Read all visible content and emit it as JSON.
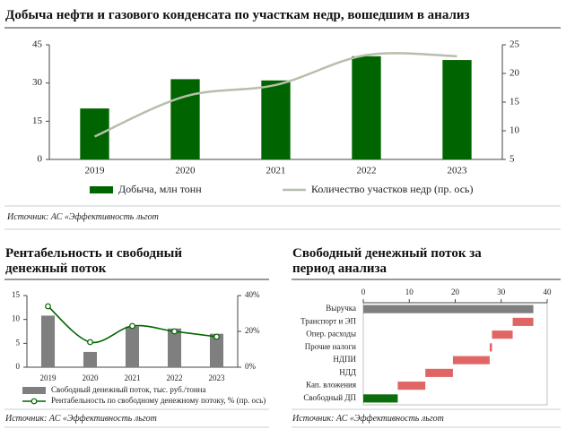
{
  "chart_data": [
    {
      "type": "combo",
      "title": "Добыча нефти и газового конденсата по участкам недр, вошедшим в анализ",
      "categories": [
        "2019",
        "2020",
        "2021",
        "2022",
        "2023"
      ],
      "series": [
        {
          "name": "Добыча, млн тонн",
          "color": "#006400",
          "type": "bar",
          "values": [
            20,
            31.5,
            31,
            40.5,
            39
          ]
        },
        {
          "name": "Количество участков недр (пр. ось)",
          "color": "#b5bfaa",
          "type": "line",
          "axis": "y2",
          "values": [
            9,
            16,
            18,
            23.2,
            23
          ]
        }
      ],
      "ylim": [
        0,
        45
      ],
      "yticks": [
        0,
        15,
        30,
        45
      ],
      "y2lim": [
        5,
        25
      ],
      "y2ticks": [
        5,
        10,
        15,
        20,
        25
      ],
      "source": "Источник: АС «Эффективность льгот"
    },
    {
      "type": "combo",
      "title": "Рентабельность и свободный денежный поток",
      "categories": [
        "2019",
        "2020",
        "2021",
        "2022",
        "2023"
      ],
      "series": [
        {
          "name": "Свободный денежный поток, тыс. руб./тонна",
          "color": "#7f7f7f",
          "type": "bar",
          "values": [
            10.8,
            3.2,
            8.5,
            8.1,
            7
          ]
        },
        {
          "name": "Рентабельность по свободному денежному потоку, % (пр. ось)",
          "color": "#006400",
          "type": "line",
          "axis": "y2",
          "markers": true,
          "values": [
            34,
            14,
            23,
            20,
            17
          ]
        }
      ],
      "ylim": [
        0,
        15
      ],
      "yticks": [
        0,
        5,
        10,
        15
      ],
      "y2lim": [
        0,
        40
      ],
      "y2ticks": [
        {
          "value": 0,
          "label": "0%"
        },
        {
          "value": 20,
          "label": "20%"
        },
        {
          "value": 40,
          "label": "40%"
        }
      ],
      "source": "Источник: АС «Эффективность льгот"
    },
    {
      "type": "waterfall",
      "title": "Свободный денежный поток за период анализа",
      "categories": [
        "Выручка",
        "Транспорт и ЭП",
        "Опер. расходы",
        "Прочие налоги",
        "НДПИ",
        "НДД",
        "Кап. вложения",
        "Свободный ДП"
      ],
      "values": [
        37,
        -4.5,
        -4.5,
        -0.5,
        -8,
        -6,
        -6,
        7.5
      ],
      "colors": [
        "#7f7f7f",
        "#e06666",
        "#e06666",
        "#e06666",
        "#e06666",
        "#e06666",
        "#e06666",
        "#0b6e0b"
      ],
      "xlim": [
        0,
        40
      ],
      "xticks": [
        0,
        10,
        20,
        30,
        40
      ],
      "source": "Источник: АС «Эффективность льгот"
    }
  ]
}
